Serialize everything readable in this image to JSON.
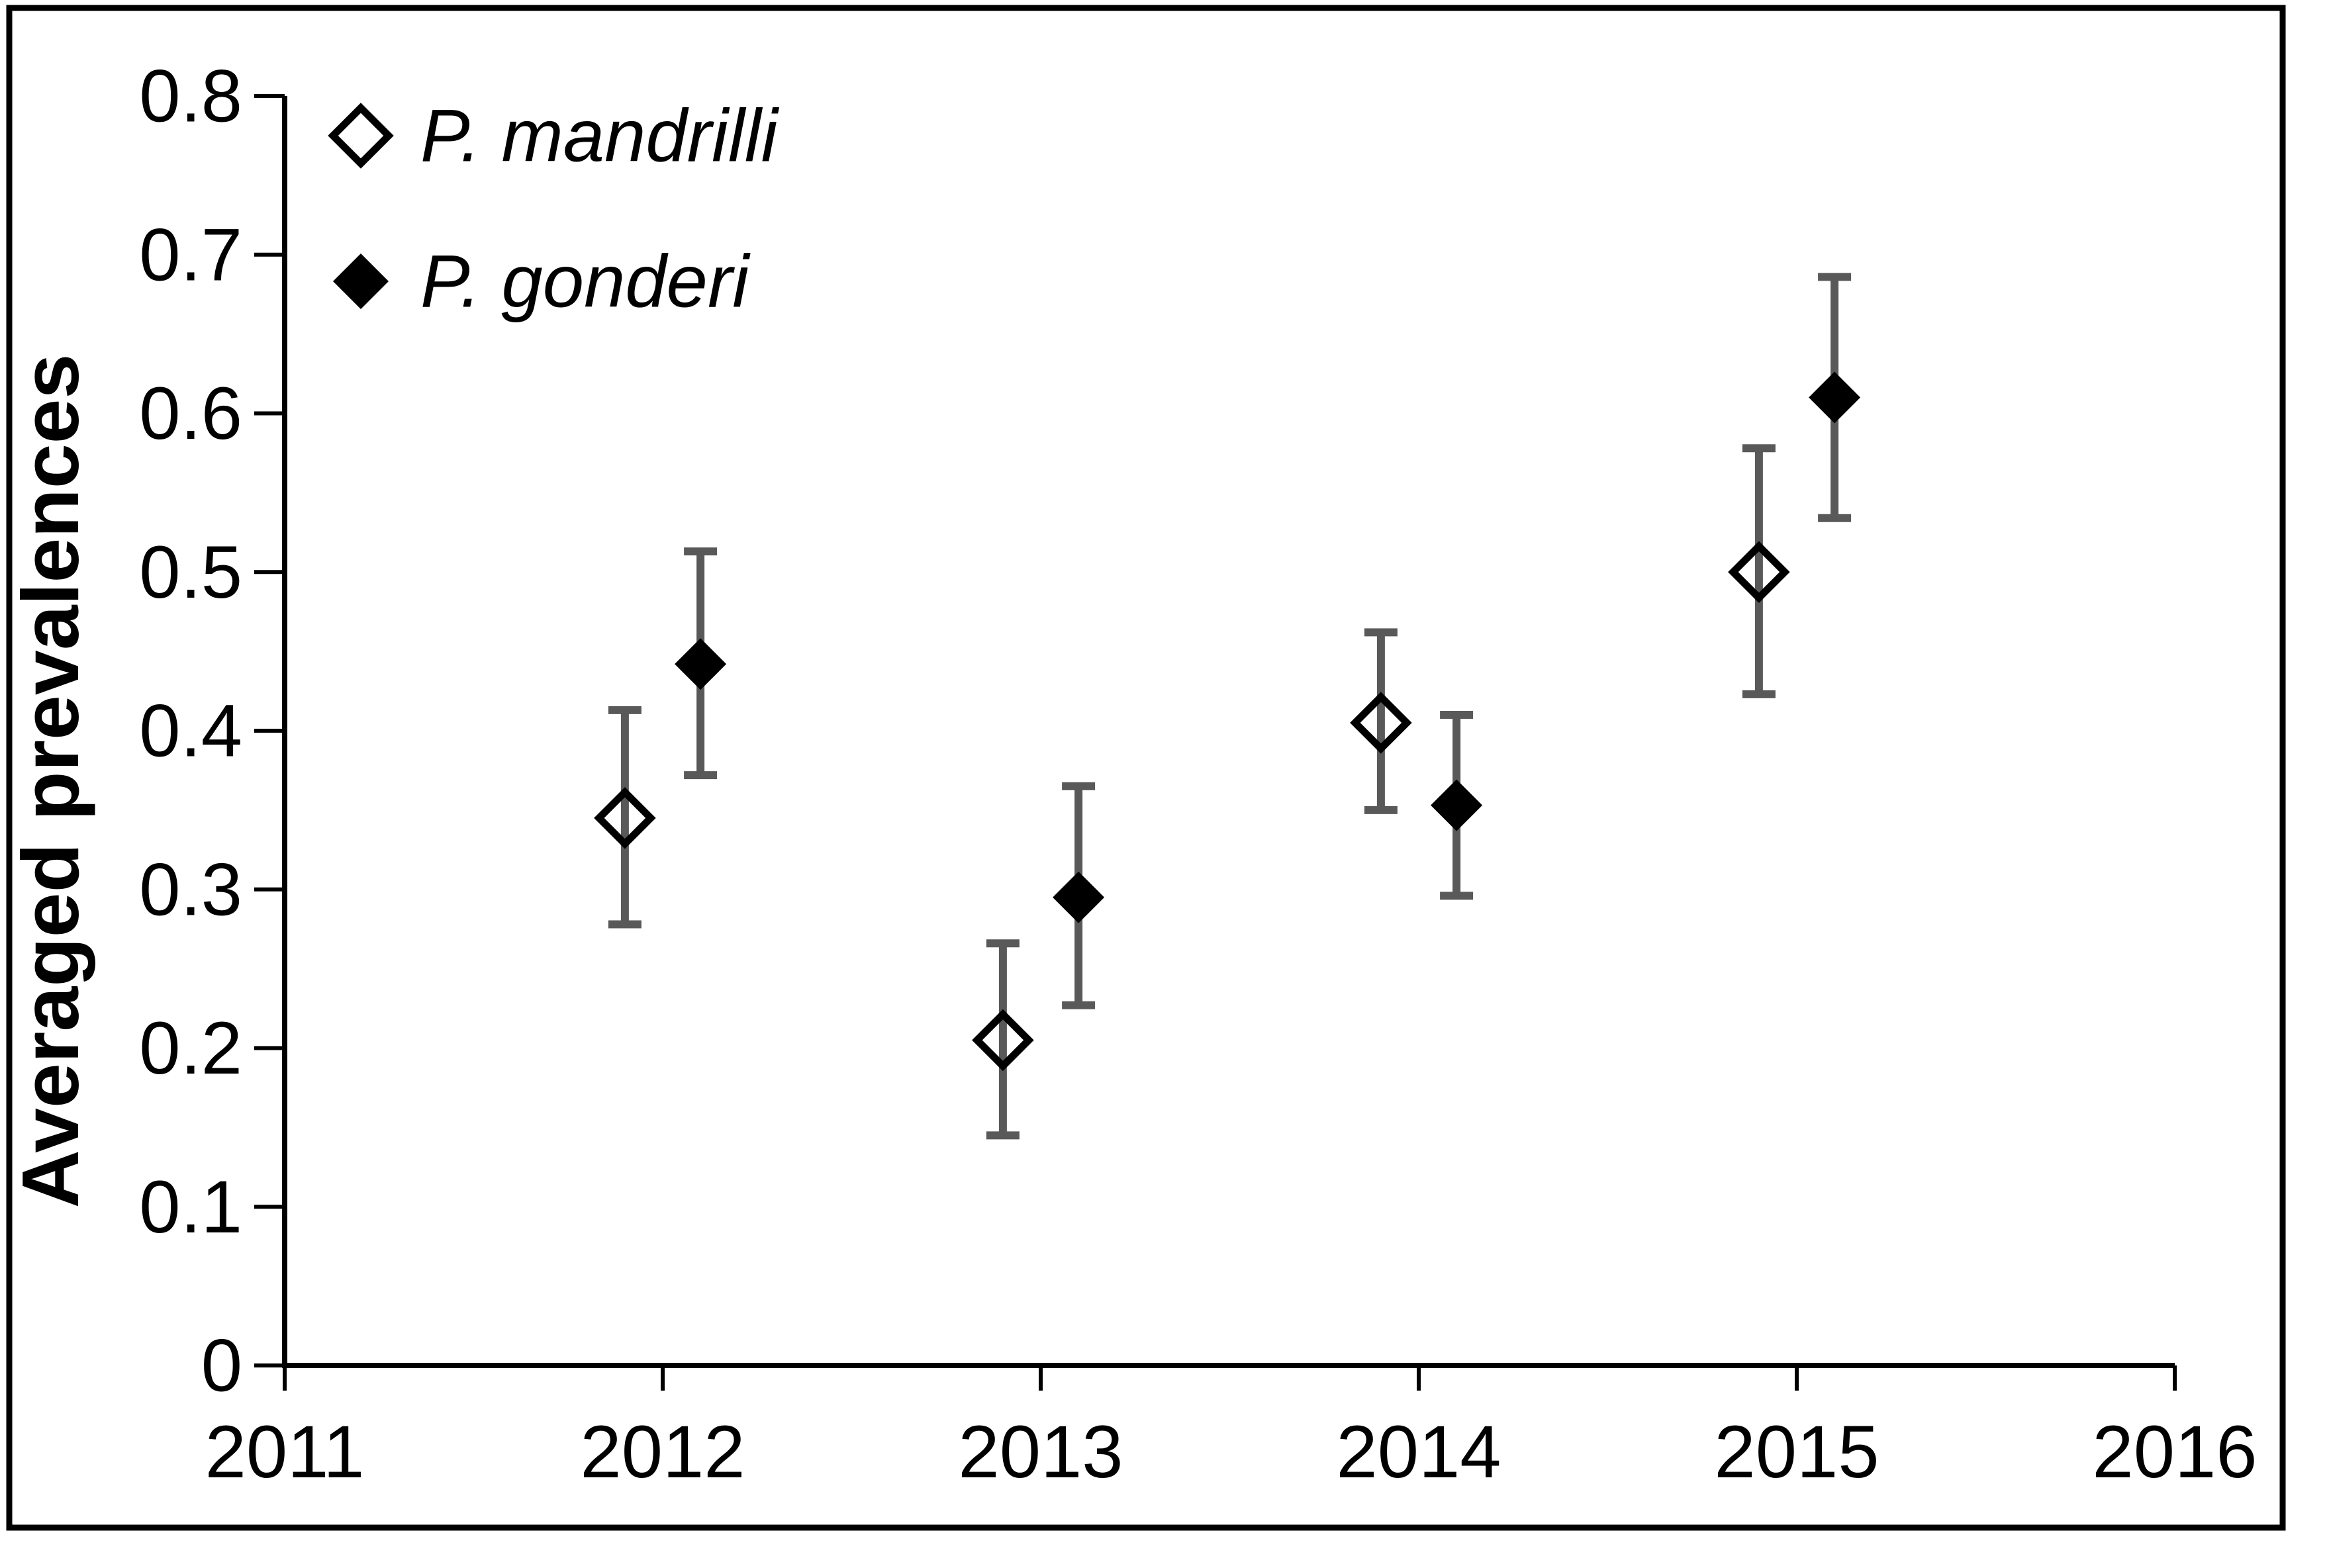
{
  "figure": {
    "background": "#ffffff",
    "border_color": "#000000"
  },
  "chart_data": {
    "type": "scatter",
    "title": "",
    "xlabel": "",
    "ylabel": "Averaged prevalences",
    "xlim": [
      2011,
      2016
    ],
    "ylim": [
      0,
      0.8
    ],
    "x_ticks": [
      2011,
      2012,
      2013,
      2014,
      2015,
      2016
    ],
    "y_ticks": [
      0,
      0.1,
      0.2,
      0.3,
      0.4,
      0.5,
      0.6,
      0.7,
      0.8
    ],
    "y_tick_labels": [
      "0",
      "0.1",
      "0.2",
      "0.3",
      "0.4",
      "0.5",
      "0.6",
      "0.7",
      "0.8"
    ],
    "x_tick_labels": [
      "2011",
      "2012",
      "2013",
      "2014",
      "2015",
      "2016"
    ],
    "grid": false,
    "legend_position": "top-left-inside",
    "colors": {
      "marker": "#000000",
      "error_bar": "#595959",
      "axis": "#000000",
      "background": "#ffffff"
    },
    "series": [
      {
        "name": "P. mandrilli",
        "marker": "open-diamond",
        "points": [
          {
            "x": 2011.9,
            "year": 2012,
            "y": 0.345,
            "ci_low": 0.278,
            "ci_high": 0.413
          },
          {
            "x": 2012.9,
            "year": 2013,
            "y": 0.205,
            "ci_low": 0.145,
            "ci_high": 0.266
          },
          {
            "x": 2013.9,
            "year": 2014,
            "y": 0.405,
            "ci_low": 0.35,
            "ci_high": 0.462
          },
          {
            "x": 2014.9,
            "year": 2015,
            "y": 0.5,
            "ci_low": 0.423,
            "ci_high": 0.578
          }
        ]
      },
      {
        "name": "P. gonderi",
        "marker": "filled-diamond",
        "points": [
          {
            "x": 2012.1,
            "year": 2012,
            "y": 0.442,
            "ci_low": 0.372,
            "ci_high": 0.513
          },
          {
            "x": 2013.1,
            "year": 2013,
            "y": 0.295,
            "ci_low": 0.227,
            "ci_high": 0.365
          },
          {
            "x": 2014.1,
            "year": 2014,
            "y": 0.353,
            "ci_low": 0.296,
            "ci_high": 0.41
          },
          {
            "x": 2015.1,
            "year": 2015,
            "y": 0.61,
            "ci_low": 0.534,
            "ci_high": 0.686
          }
        ]
      }
    ]
  }
}
